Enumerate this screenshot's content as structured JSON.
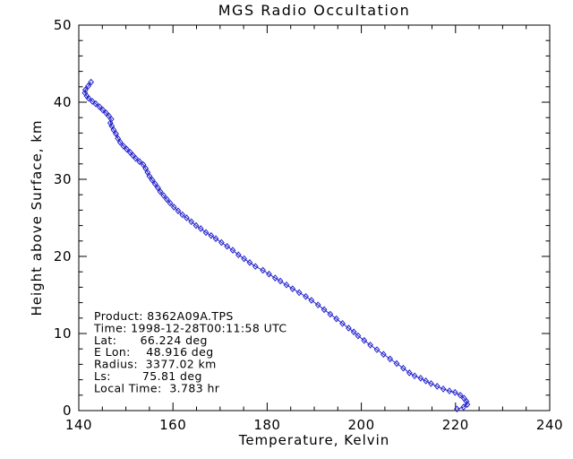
{
  "title": "MGS Radio Occultation",
  "chart_data": {
    "type": "line",
    "title": "MGS Radio Occultation",
    "xlabel": "Temperature, Kelvin",
    "ylabel": "Height above Surface, km",
    "xlim": [
      140,
      240
    ],
    "ylim": [
      0,
      50
    ],
    "x_ticks": [
      140,
      160,
      180,
      200,
      220,
      240
    ],
    "y_ticks": [
      0,
      10,
      20,
      30,
      40,
      50
    ],
    "x_minor_step": 5,
    "y_minor_step": 2,
    "grid": false,
    "legend": "none",
    "line_color": "#2222CC",
    "axis_color": "#000000",
    "marker": "diamond-open",
    "series": [
      {
        "name": "temperature-profile",
        "points_format": "[temperature_K, height_km]",
        "points": [
          [
            142.6,
            42.6
          ],
          [
            142.0,
            42.1
          ],
          [
            141.4,
            41.6
          ],
          [
            141.3,
            41.2
          ],
          [
            141.7,
            40.8
          ],
          [
            142.1,
            40.5
          ],
          [
            142.9,
            40.1
          ],
          [
            143.6,
            39.8
          ],
          [
            144.4,
            39.4
          ],
          [
            145.1,
            39.0
          ],
          [
            145.8,
            38.6
          ],
          [
            146.4,
            38.2
          ],
          [
            146.9,
            37.8
          ],
          [
            146.7,
            37.3
          ],
          [
            147.0,
            36.9
          ],
          [
            147.4,
            36.4
          ],
          [
            147.9,
            35.9
          ],
          [
            148.3,
            35.3
          ],
          [
            148.8,
            34.8
          ],
          [
            149.5,
            34.3
          ],
          [
            150.2,
            33.9
          ],
          [
            150.9,
            33.5
          ],
          [
            151.5,
            33.1
          ],
          [
            152.1,
            32.7
          ],
          [
            152.9,
            32.3
          ],
          [
            153.7,
            31.9
          ],
          [
            154.2,
            31.4
          ],
          [
            154.6,
            30.9
          ],
          [
            155.0,
            30.4
          ],
          [
            155.6,
            29.9
          ],
          [
            156.2,
            29.4
          ],
          [
            156.8,
            28.9
          ],
          [
            157.3,
            28.4
          ],
          [
            158.0,
            27.9
          ],
          [
            158.7,
            27.4
          ],
          [
            159.4,
            26.9
          ],
          [
            160.2,
            26.4
          ],
          [
            161.1,
            25.9
          ],
          [
            162.0,
            25.4
          ],
          [
            162.9,
            25.0
          ],
          [
            163.9,
            24.5
          ],
          [
            164.9,
            24.0
          ],
          [
            165.9,
            23.6
          ],
          [
            167.0,
            23.1
          ],
          [
            168.1,
            22.7
          ],
          [
            169.1,
            22.3
          ],
          [
            170.3,
            21.8
          ],
          [
            171.5,
            21.3
          ],
          [
            172.7,
            20.8
          ],
          [
            173.9,
            20.2
          ],
          [
            175.1,
            19.7
          ],
          [
            176.3,
            19.2
          ],
          [
            177.5,
            18.7
          ],
          [
            179.1,
            18.2
          ],
          [
            180.4,
            17.7
          ],
          [
            181.7,
            17.2
          ],
          [
            182.8,
            16.8
          ],
          [
            184.1,
            16.3
          ],
          [
            185.4,
            15.8
          ],
          [
            186.8,
            15.3
          ],
          [
            188.2,
            14.8
          ],
          [
            189.4,
            14.3
          ],
          [
            190.8,
            13.7
          ],
          [
            192.1,
            13.1
          ],
          [
            193.4,
            12.5
          ],
          [
            194.7,
            11.9
          ],
          [
            196.0,
            11.3
          ],
          [
            197.3,
            10.7
          ],
          [
            198.4,
            10.2
          ],
          [
            199.3,
            9.7
          ],
          [
            200.6,
            9.1
          ],
          [
            201.9,
            8.5
          ],
          [
            203.3,
            7.9
          ],
          [
            204.7,
            7.3
          ],
          [
            206.1,
            6.7
          ],
          [
            207.5,
            6.1
          ],
          [
            208.9,
            5.5
          ],
          [
            210.2,
            4.9
          ],
          [
            211.3,
            4.5
          ],
          [
            212.6,
            4.2
          ],
          [
            213.7,
            3.85
          ],
          [
            214.8,
            3.5
          ],
          [
            216.1,
            3.15
          ],
          [
            217.4,
            2.8
          ],
          [
            218.7,
            2.55
          ],
          [
            219.9,
            2.35
          ],
          [
            221.0,
            2.0
          ],
          [
            221.8,
            1.6
          ],
          [
            222.3,
            1.2
          ],
          [
            222.5,
            0.8
          ],
          [
            221.7,
            0.45
          ],
          [
            220.3,
            0.2
          ]
        ]
      }
    ],
    "annotation": {
      "fields": {
        "product": "8362A09A.TPS",
        "time": "1998-12-28T00:11:58 UTC",
        "lat_deg": 66.224,
        "e_lon_deg": 48.916,
        "radius_km": 3377.02,
        "ls_deg": 75.81,
        "local_time_hr": 3.783
      },
      "lines": [
        "Product: 8362A09A.TPS",
        "Time: 1998-12-28T00:11:58 UTC",
        "Lat:      66.224 deg",
        "E Lon:    48.916 deg",
        "Radius:  3377.02 km",
        "Ls:        75.81 deg",
        "Local Time:  3.783 hr"
      ]
    }
  }
}
